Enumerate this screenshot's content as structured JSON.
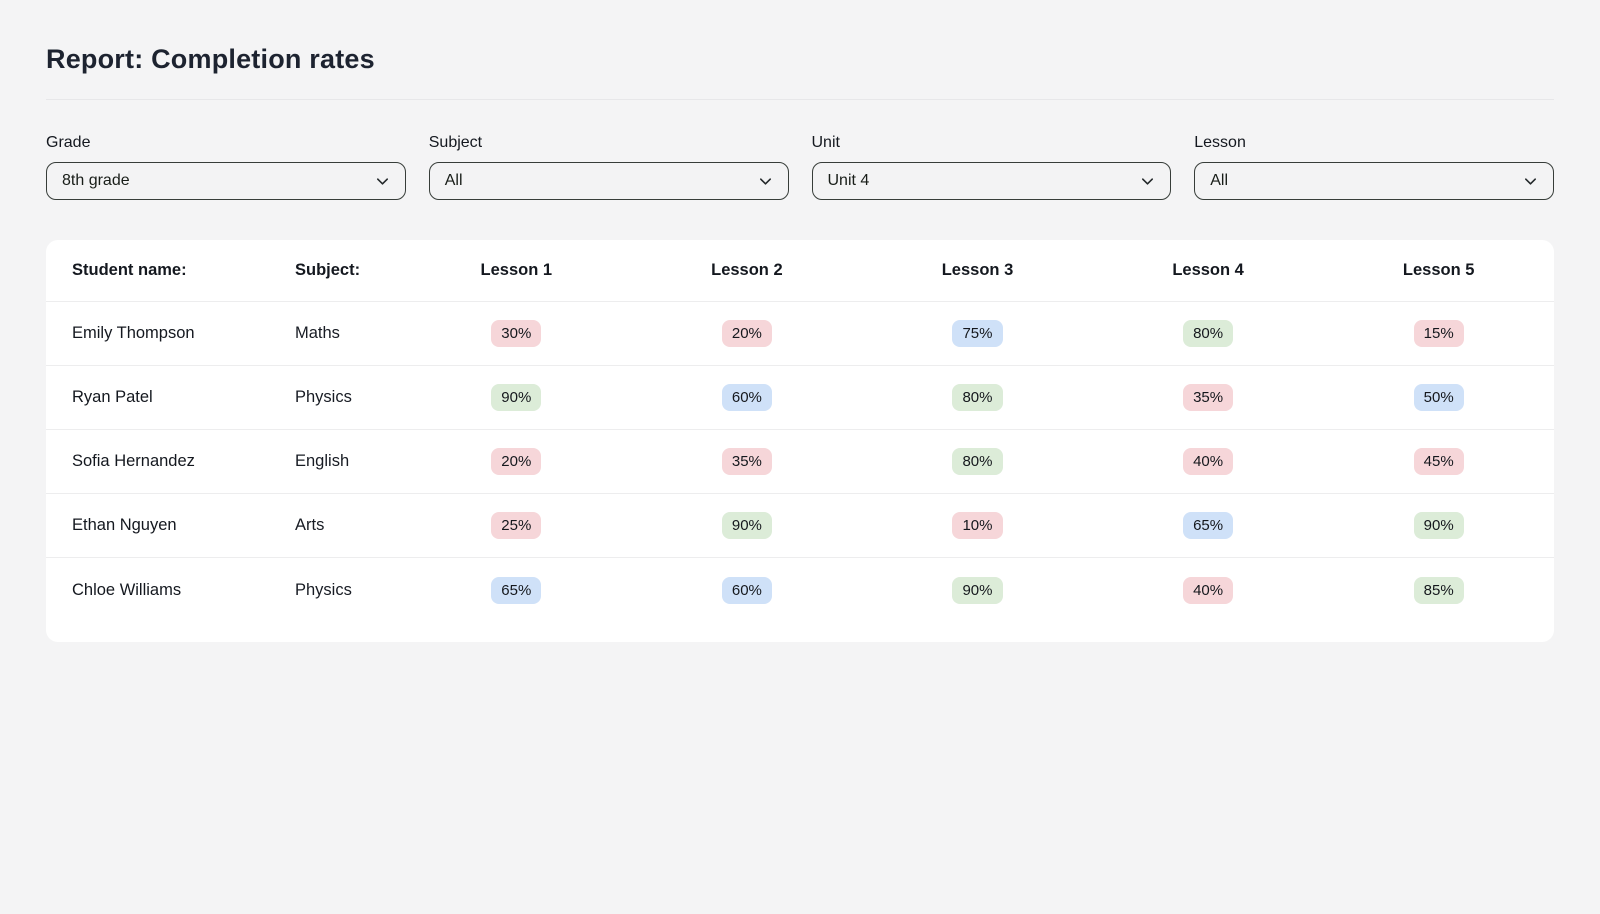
{
  "page": {
    "title": "Report: Completion rates"
  },
  "filters": [
    {
      "label": "Grade",
      "value": "8th grade"
    },
    {
      "label": "Subject",
      "value": "All"
    },
    {
      "label": "Unit",
      "value": "Unit 4"
    },
    {
      "label": "Lesson",
      "value": "All"
    }
  ],
  "table": {
    "columns": [
      "Student name:",
      "Subject:",
      "Lesson 1",
      "Lesson 2",
      "Lesson 3",
      "Lesson 4",
      "Lesson 5"
    ],
    "rows": [
      {
        "student": "Emily Thompson",
        "subject": "Maths",
        "lessons": [
          {
            "value": "30%",
            "color": "red"
          },
          {
            "value": "20%",
            "color": "red"
          },
          {
            "value": "75%",
            "color": "blue"
          },
          {
            "value": "80%",
            "color": "green"
          },
          {
            "value": "15%",
            "color": "red"
          }
        ]
      },
      {
        "student": "Ryan Patel",
        "subject": "Physics",
        "lessons": [
          {
            "value": "90%",
            "color": "green"
          },
          {
            "value": "60%",
            "color": "blue"
          },
          {
            "value": "80%",
            "color": "green"
          },
          {
            "value": "35%",
            "color": "red"
          },
          {
            "value": "50%",
            "color": "blue"
          }
        ]
      },
      {
        "student": "Sofia Hernandez",
        "subject": "English",
        "lessons": [
          {
            "value": "20%",
            "color": "red"
          },
          {
            "value": "35%",
            "color": "red"
          },
          {
            "value": "80%",
            "color": "green"
          },
          {
            "value": "40%",
            "color": "red"
          },
          {
            "value": "45%",
            "color": "red"
          }
        ]
      },
      {
        "student": "Ethan Nguyen",
        "subject": "Arts",
        "lessons": [
          {
            "value": "25%",
            "color": "red"
          },
          {
            "value": "90%",
            "color": "green"
          },
          {
            "value": "10%",
            "color": "red"
          },
          {
            "value": "65%",
            "color": "blue"
          },
          {
            "value": "90%",
            "color": "green"
          }
        ]
      },
      {
        "student": "Chloe Williams",
        "subject": "Physics",
        "lessons": [
          {
            "value": "65%",
            "color": "blue"
          },
          {
            "value": "60%",
            "color": "blue"
          },
          {
            "value": "90%",
            "color": "green"
          },
          {
            "value": "40%",
            "color": "red"
          },
          {
            "value": "85%",
            "color": "green"
          }
        ]
      }
    ]
  },
  "colors": {
    "badge_red": "#f6d6d9",
    "badge_green": "#dcecd8",
    "badge_blue": "#cfe1f8",
    "page_background": "#f4f4f5",
    "card_background": "#ffffff"
  }
}
